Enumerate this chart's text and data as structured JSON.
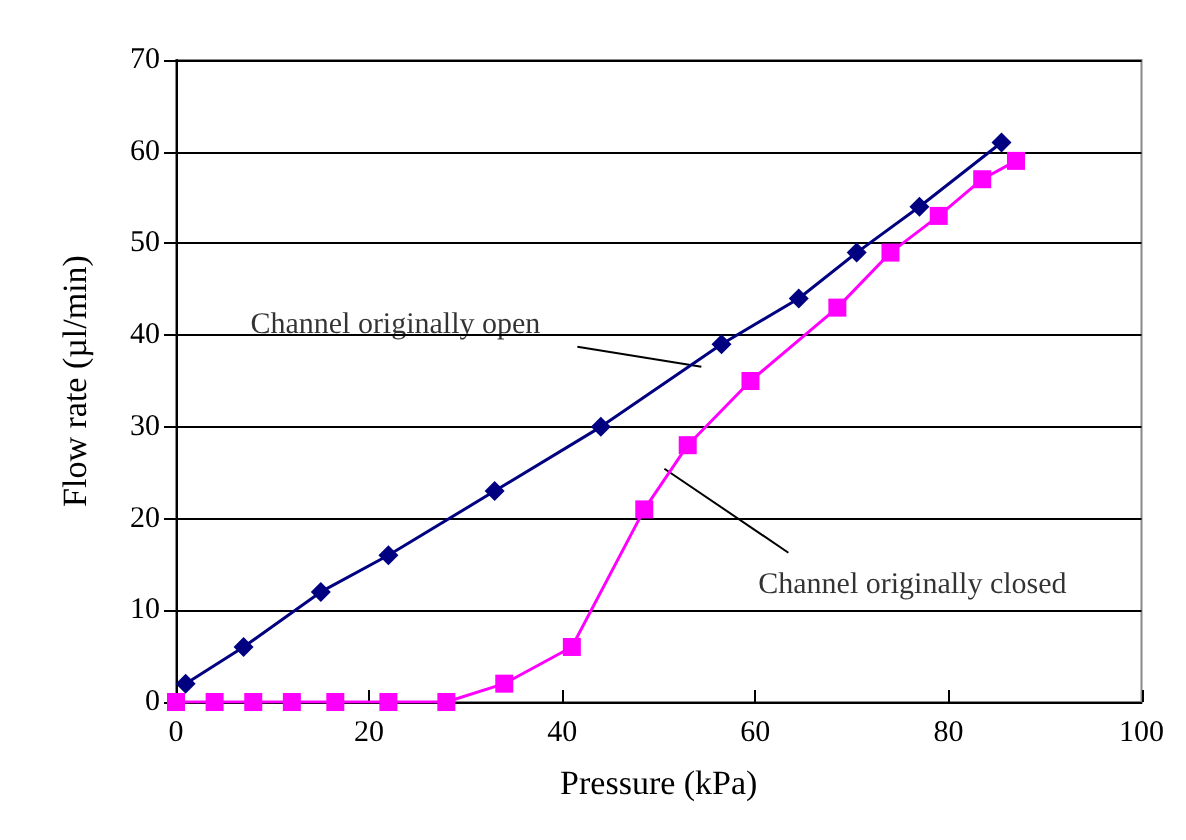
{
  "chart_data": {
    "type": "line",
    "xlabel": "Pressure (kPa)",
    "ylabel": "Flow rate (µl/min)",
    "xlim": [
      0,
      100
    ],
    "xticks": [
      0,
      20,
      40,
      60,
      80,
      100
    ],
    "ylim": [
      0,
      70
    ],
    "yticks": [
      0,
      10,
      20,
      30,
      40,
      50,
      60,
      70
    ],
    "grid": "y",
    "line_style": "solid",
    "series": [
      {
        "color": "#000080",
        "marker": "diamond",
        "x": [
          1,
          7,
          15,
          22,
          33,
          44,
          56.5,
          64.5,
          70.5,
          77,
          85.5
        ],
        "values": [
          2,
          6,
          12,
          16,
          23,
          30,
          39,
          44,
          49,
          54,
          61
        ]
      },
      {
        "color": "#ff00ff",
        "marker": "square",
        "x": [
          0,
          4,
          8,
          12,
          16.5,
          22,
          28,
          34,
          41,
          48.5,
          53,
          59.5,
          68.5,
          74,
          79,
          83.5,
          87
        ],
        "values": [
          0,
          0,
          0,
          0,
          0,
          0,
          0,
          2,
          6,
          21,
          28,
          35,
          43,
          49,
          53,
          57,
          59
        ]
      }
    ],
    "annotations": [
      {
        "text": "Channel originally open",
        "x": 54,
        "y": 37
      },
      {
        "text": "Channel originally closed",
        "x": 51,
        "y": 25
      }
    ]
  }
}
